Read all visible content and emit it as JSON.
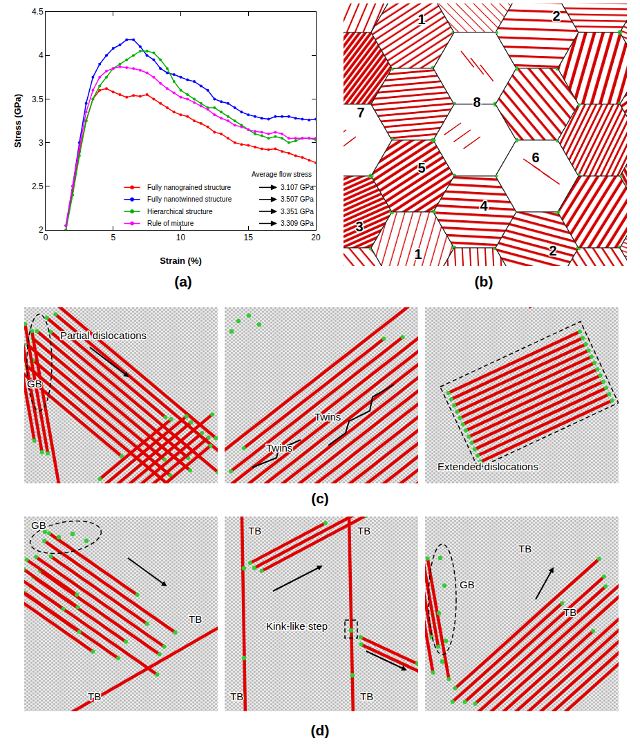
{
  "chart_data": {
    "type": "line",
    "x_label": "Strain (%)",
    "y_label": "Stress (GPa)",
    "x": [
      1.5,
      2,
      2.5,
      3,
      3.5,
      4,
      4.5,
      5,
      5.5,
      6,
      6.5,
      7,
      7.5,
      8,
      8.5,
      9,
      9.5,
      10,
      10.5,
      11,
      11.5,
      12,
      12.5,
      13,
      13.5,
      14,
      14.5,
      15,
      15.5,
      16,
      16.5,
      17,
      17.5,
      18,
      18.5,
      19,
      19.5,
      20
    ],
    "xlim": [
      0,
      20
    ],
    "xticks": [
      0,
      5,
      10,
      15,
      20
    ],
    "ylim": [
      2,
      4.5
    ],
    "yticks": [
      2,
      2.5,
      3,
      3.5,
      4,
      4.5
    ],
    "grid": false,
    "legend": "lower right",
    "marker": "circle",
    "line_style": "solid",
    "flow_stress_title": "Average flow stress",
    "series": [
      {
        "name": "Fully nanograined structure",
        "color": "#ff0000",
        "average_flow_stress": "3.107 GPa",
        "values": [
          2.0,
          2.45,
          2.9,
          3.25,
          3.5,
          3.6,
          3.62,
          3.58,
          3.55,
          3.52,
          3.54,
          3.53,
          3.55,
          3.5,
          3.45,
          3.4,
          3.35,
          3.32,
          3.3,
          3.25,
          3.22,
          3.18,
          3.12,
          3.1,
          3.05,
          3.0,
          2.98,
          2.97,
          2.95,
          2.93,
          2.92,
          2.93,
          2.9,
          2.88,
          2.85,
          2.83,
          2.8,
          2.77
        ]
      },
      {
        "name": "Fully nanotwinned structure",
        "color": "#0000ff",
        "average_flow_stress": "3.507 GPa",
        "values": [
          2.05,
          2.5,
          3.0,
          3.45,
          3.75,
          3.9,
          4.0,
          4.08,
          4.12,
          4.18,
          4.18,
          4.1,
          4.0,
          3.95,
          3.85,
          3.8,
          3.78,
          3.75,
          3.72,
          3.7,
          3.65,
          3.6,
          3.5,
          3.47,
          3.45,
          3.4,
          3.35,
          3.32,
          3.3,
          3.28,
          3.27,
          3.3,
          3.3,
          3.3,
          3.28,
          3.27,
          3.26,
          3.27
        ]
      },
      {
        "name": "Hierarchical structure",
        "color": "#00b000",
        "average_flow_stress": "3.351 GPa",
        "values": [
          2.0,
          2.4,
          2.85,
          3.25,
          3.5,
          3.65,
          3.75,
          3.85,
          3.9,
          3.95,
          4.0,
          4.05,
          4.05,
          4.03,
          3.95,
          3.85,
          3.7,
          3.6,
          3.55,
          3.5,
          3.45,
          3.4,
          3.4,
          3.35,
          3.3,
          3.25,
          3.2,
          3.15,
          3.1,
          3.08,
          3.05,
          3.07,
          3.05,
          3.0,
          3.02,
          3.05,
          3.05,
          3.03
        ]
      },
      {
        "name": "Rule of mixture",
        "color": "#ff00ff",
        "average_flow_stress": "3.309 GPa",
        "values": [
          2.05,
          2.5,
          2.95,
          3.35,
          3.6,
          3.75,
          3.82,
          3.85,
          3.87,
          3.86,
          3.85,
          3.83,
          3.8,
          3.75,
          3.68,
          3.62,
          3.57,
          3.52,
          3.5,
          3.46,
          3.42,
          3.38,
          3.32,
          3.28,
          3.25,
          3.2,
          3.18,
          3.15,
          3.13,
          3.12,
          3.1,
          3.12,
          3.1,
          3.05,
          3.05,
          3.05,
          3.05,
          3.05
        ]
      }
    ]
  },
  "panel_labels": [
    "(a)",
    "(b)",
    "(c)",
    "(d)"
  ],
  "panel_b": {
    "grain_labels": [
      "1",
      "2",
      "7",
      "8",
      "5",
      "6",
      "3",
      "4",
      "2",
      "1"
    ]
  },
  "panel_c": [
    {
      "labels": [
        "GB",
        "Partial dislocations"
      ]
    },
    {
      "labels": [
        "Twins",
        "Twins"
      ]
    },
    {
      "labels": [
        "Extended dislocations"
      ]
    }
  ],
  "panel_d": [
    {
      "labels": [
        "GB",
        "TB",
        "TB"
      ]
    },
    {
      "labels": [
        "TB",
        "TB",
        "Kink-like step",
        "TB",
        "TB"
      ]
    },
    {
      "labels": [
        "GB",
        "TB",
        "TB"
      ]
    }
  ]
}
